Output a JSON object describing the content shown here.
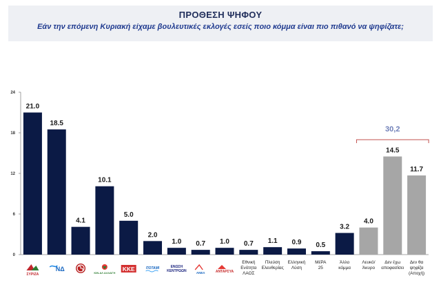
{
  "header": {
    "title": "ΠΡΟΘΕΣΗ ΨΗΦΟΥ",
    "subtitle": "Εάν την επόμενη Κυριακή είχαμε βουλευτικές εκλογές εσείς ποιο κόμμα είναι πιο πιθανό να ψηφίζατε;"
  },
  "colors": {
    "party": "#0b1a45",
    "other": "#a6a6a6",
    "brace": "#c0504d",
    "total": "#6f7fb8"
  },
  "chart_data": {
    "type": "bar",
    "title": "ΠΡΟΘΕΣΗ ΨΗΦΟΥ",
    "ylim": [
      0,
      24
    ],
    "yticks": [
      0,
      6,
      12,
      18,
      24
    ],
    "categories": [
      "ΣΥΡΙΖΑ",
      "ΝΔ",
      "Χρυσή Αυγή",
      "ΚΙΝ.ΑΛ",
      "ΚΚΕ",
      "Ποτάμι",
      "Ένωση Κεντρώων",
      "Ανεξάρτητοι Έλληνες",
      "ΑΝΤΑΡΣΥΑ",
      "Εθνική Ενότητα ΛΑΟΣ",
      "Πλεύση Ελευθερίας",
      "Ελληνική Λύση",
      "ΜέΡΑ 25",
      "Άλλο κόμμα",
      "Λευκό/ Άκυρο",
      "Δεν έχω αποφασίσει",
      "Δεν θα ψηφίζα (Αποχή)"
    ],
    "values": [
      21.0,
      18.5,
      4.1,
      10.1,
      5.0,
      2.0,
      1.0,
      0.7,
      1.0,
      0.7,
      1.1,
      0.9,
      0.5,
      3.2,
      4.0,
      14.5,
      11.7
    ],
    "value_labels": [
      "21.0",
      "18.5",
      "4.1",
      "10.1",
      "5.0",
      "2.0",
      "1.0",
      "0.7",
      "1.0",
      "0.7",
      "1.1",
      "0.9",
      "0.5",
      "3.2",
      "4.0",
      "14.5",
      "11.7"
    ],
    "bar_colors": [
      "party",
      "party",
      "party",
      "party",
      "party",
      "party",
      "party",
      "party",
      "party",
      "party",
      "party",
      "party",
      "party",
      "party",
      "other",
      "other",
      "other"
    ],
    "text_labels": [
      null,
      null,
      null,
      null,
      null,
      null,
      null,
      null,
      null,
      [
        "Εθνική",
        "Ενότητα",
        "ΛΑΟΣ"
      ],
      [
        "Πλεύση",
        "Ελευθερίας"
      ],
      [
        "Ελληνική",
        "Λύση"
      ],
      [
        "ΜέΡΑ",
        "25"
      ],
      [
        "Άλλο",
        "κόμμα"
      ],
      [
        "Λευκό/",
        "Άκυρο"
      ],
      [
        "Δεν έχω",
        "αποφασίσει"
      ],
      [
        "Δεν θα",
        "ψηφίζα",
        "(Αποχή)"
      ]
    ],
    "logo_texts": [
      "ΣΥΡΙΖΑ",
      "ΝΔ",
      "",
      "ΚΙΝ.ΑΛ ΑΛΛΑΓΗ",
      "ΚΚΕ",
      "ΠΟΤΑΜΙ",
      "ΕΝΩΣΗ ΚΕΝΤΡΩΩΝ",
      "ΑΝΕΛ",
      "ΑΝΤΑΡΣΥΑ"
    ],
    "bracket": {
      "from": 14,
      "to": 16,
      "label": "30,2"
    }
  }
}
